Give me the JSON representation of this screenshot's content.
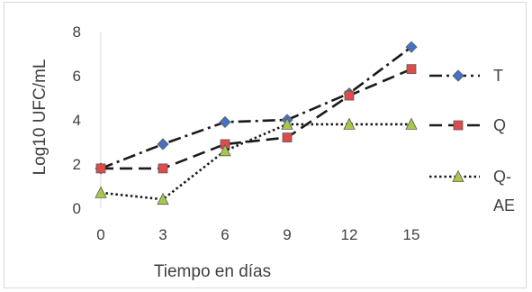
{
  "chart_data": {
    "type": "line",
    "title": "",
    "xlabel": "Tiempo en días",
    "ylabel": "Log10 UFC/mL",
    "x": [
      0,
      3,
      6,
      9,
      12,
      15
    ],
    "x_ticks": [
      "0",
      "3",
      "6",
      "9",
      "12",
      "15"
    ],
    "ylim": [
      0,
      8
    ],
    "y_ticks": [
      "0",
      "2",
      "4",
      "6",
      "8"
    ],
    "grid": false,
    "legend_position": "right",
    "series": [
      {
        "name": "T",
        "values": [
          1.8,
          2.9,
          3.9,
          4.0,
          5.2,
          7.3
        ],
        "color": "#4472c4",
        "line_color": "#1a1a1a",
        "marker": "diamond",
        "dash": "dash-dot"
      },
      {
        "name": "Q",
        "values": [
          1.8,
          1.8,
          2.9,
          3.2,
          5.1,
          6.3
        ],
        "color": "#dd4b4b",
        "line_color": "#1a1a1a",
        "marker": "square",
        "dash": "dash"
      },
      {
        "name": "Q-AE",
        "legend_lines": [
          "Q-",
          "AE"
        ],
        "values": [
          0.7,
          0.4,
          2.6,
          3.8,
          3.8,
          3.8
        ],
        "color": "#a9c84a",
        "line_color": "#1a1a1a",
        "marker": "triangle",
        "dash": "dot"
      }
    ]
  }
}
